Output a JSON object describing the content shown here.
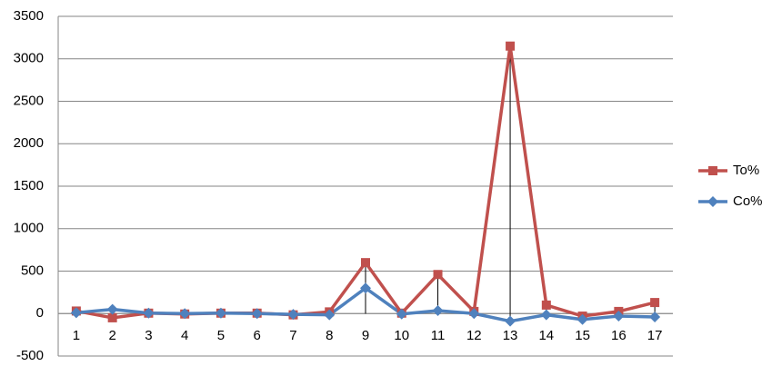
{
  "chart_data": {
    "type": "line",
    "categories": [
      "1",
      "2",
      "3",
      "4",
      "5",
      "6",
      "7",
      "8",
      "9",
      "10",
      "11",
      "12",
      "13",
      "14",
      "15",
      "16",
      "17"
    ],
    "series": [
      {
        "name": "To%",
        "color": "#c0504d",
        "marker": "square",
        "values": [
          30,
          -50,
          5,
          -5,
          5,
          5,
          -15,
          20,
          600,
          5,
          460,
          25,
          3150,
          100,
          -30,
          25,
          130
        ]
      },
      {
        "name": "Co%",
        "color": "#4f81bd",
        "marker": "diamond",
        "values": [
          10,
          50,
          5,
          0,
          5,
          0,
          -10,
          -15,
          300,
          -5,
          35,
          0,
          -90,
          -15,
          -70,
          -30,
          -40
        ]
      }
    ],
    "ylim": [
      -500,
      3500
    ],
    "yticks": [
      -500,
      0,
      500,
      1000,
      1500,
      2000,
      2500,
      3000,
      3500
    ],
    "grid": true,
    "drop_lines": true,
    "legend": "right"
  }
}
